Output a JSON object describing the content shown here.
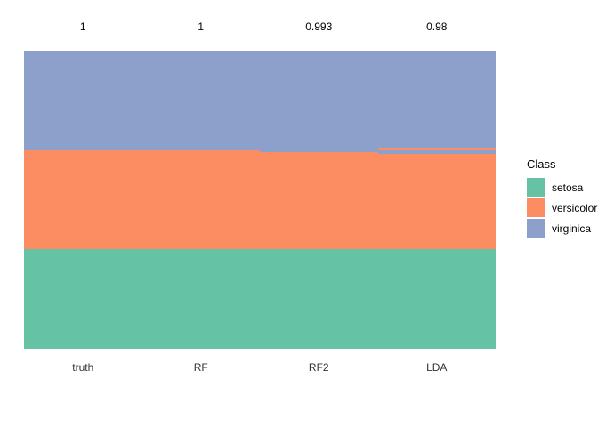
{
  "figure": {
    "background": "#FFFFFF",
    "text_color": "#000000",
    "axis_text_color": "#333333"
  },
  "chart_data": {
    "type": "heatmap",
    "subtype": "per-observation class membership map, one column per model",
    "total_observations": 150,
    "segment_order": "top-to-bottom",
    "x_tick_labels": [
      "truth",
      "RF",
      "RF2",
      "LDA"
    ],
    "top_annotations": [
      "1",
      "1",
      "0.993",
      "0.98"
    ],
    "palette": {
      "setosa": "#66C2A5",
      "versicolor": "#FC8D62",
      "virginica": "#8DA0CB"
    },
    "columns": [
      {
        "name": "truth",
        "accuracy_label": "1",
        "segments": [
          {
            "class": "virginica",
            "count": 50
          },
          {
            "class": "versicolor",
            "count": 50
          },
          {
            "class": "setosa",
            "count": 50
          }
        ]
      },
      {
        "name": "RF",
        "accuracy_label": "1",
        "segments": [
          {
            "class": "virginica",
            "count": 50
          },
          {
            "class": "versicolor",
            "count": 50
          },
          {
            "class": "setosa",
            "count": 50
          }
        ]
      },
      {
        "name": "RF2",
        "accuracy_label": "0.993",
        "segments": [
          {
            "class": "virginica",
            "count": 51
          },
          {
            "class": "versicolor",
            "count": 49
          },
          {
            "class": "setosa",
            "count": 50
          }
        ]
      },
      {
        "name": "LDA",
        "accuracy_label": "0.98",
        "segments": [
          {
            "class": "virginica",
            "count": 49
          },
          {
            "class": "versicolor",
            "count": 1
          },
          {
            "class": "virginica",
            "count": 2
          },
          {
            "class": "versicolor",
            "count": 48
          },
          {
            "class": "setosa",
            "count": 50
          }
        ]
      }
    ],
    "legend_position": "right"
  },
  "legend": {
    "title": "Class",
    "items": [
      {
        "label": "setosa",
        "color": "#66C2A5"
      },
      {
        "label": "versicolor",
        "color": "#FC8D62"
      },
      {
        "label": "virginica",
        "color": "#8DA0CB"
      }
    ]
  }
}
